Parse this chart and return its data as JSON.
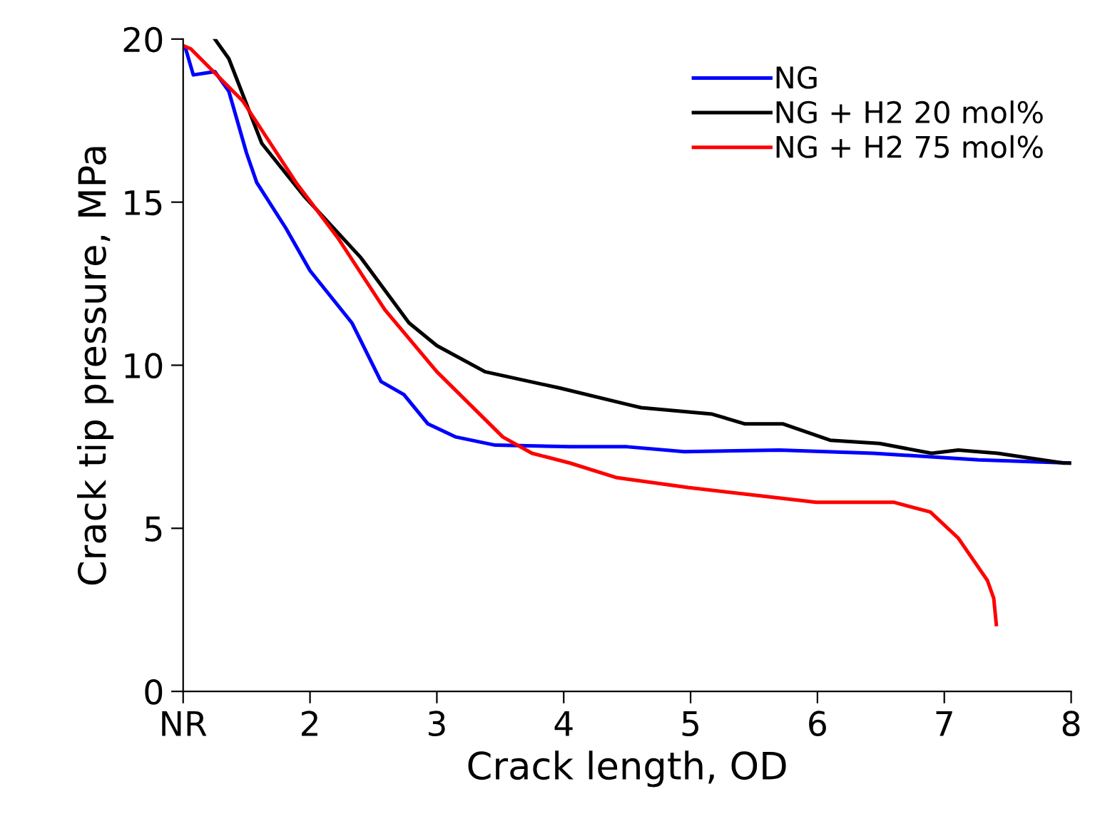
{
  "chart_data": {
    "type": "line",
    "xlabel": "Crack length, OD",
    "ylabel": "Crack tip pressure, MPa",
    "xlim": [
      1,
      8
    ],
    "xticks": [
      {
        "value": 1,
        "label": "NR"
      },
      2,
      3,
      4,
      5,
      6,
      7,
      8
    ],
    "ylim": [
      0,
      20
    ],
    "yticks": [
      0,
      5,
      10,
      15,
      20
    ],
    "grid": false,
    "legend": "top right",
    "marker": "none",
    "line_style": "solid",
    "series": [
      {
        "name": "NG",
        "color": "#0000ff",
        "x": [
          1.02,
          1.08,
          1.25,
          1.36,
          1.5,
          1.58,
          1.81,
          2.0,
          2.33,
          2.56,
          2.74,
          2.93,
          3.15,
          3.46,
          4.05,
          4.5,
          4.95,
          5.7,
          6.44,
          7.27,
          8.0
        ],
        "values": [
          19.7,
          18.9,
          19.0,
          18.4,
          16.5,
          15.6,
          14.2,
          12.9,
          11.3,
          9.5,
          9.1,
          8.2,
          7.8,
          7.55,
          7.5,
          7.5,
          7.35,
          7.4,
          7.3,
          7.1,
          7.0
        ]
      },
      {
        "name": "NG + H2 20 mol%",
        "color": "#000000",
        "x": [
          1.25,
          1.36,
          1.62,
          1.95,
          2.4,
          2.78,
          3.0,
          3.38,
          3.97,
          4.5,
          4.61,
          5.17,
          5.43,
          5.73,
          6.1,
          6.49,
          6.9,
          7.11,
          7.42,
          7.94,
          8.0
        ],
        "values": [
          20.0,
          19.4,
          16.8,
          15.2,
          13.3,
          11.3,
          10.6,
          9.8,
          9.3,
          8.8,
          8.7,
          8.5,
          8.2,
          8.2,
          7.7,
          7.6,
          7.3,
          7.4,
          7.3,
          7.0,
          7.0
        ]
      },
      {
        "name": "NG + H2 75 mol%",
        "color": "#ff0000",
        "x": [
          1.0,
          1.06,
          1.47,
          1.89,
          2.22,
          2.59,
          3.0,
          3.52,
          3.75,
          4.05,
          4.42,
          4.98,
          5.54,
          5.99,
          6.6,
          6.89,
          7.11,
          7.34,
          7.39,
          7.41
        ],
        "values": [
          19.8,
          19.7,
          18.1,
          15.6,
          13.9,
          11.7,
          9.8,
          7.8,
          7.3,
          7.0,
          6.55,
          6.25,
          6.0,
          5.8,
          5.8,
          5.5,
          4.7,
          3.4,
          2.85,
          2.05
        ]
      }
    ]
  }
}
